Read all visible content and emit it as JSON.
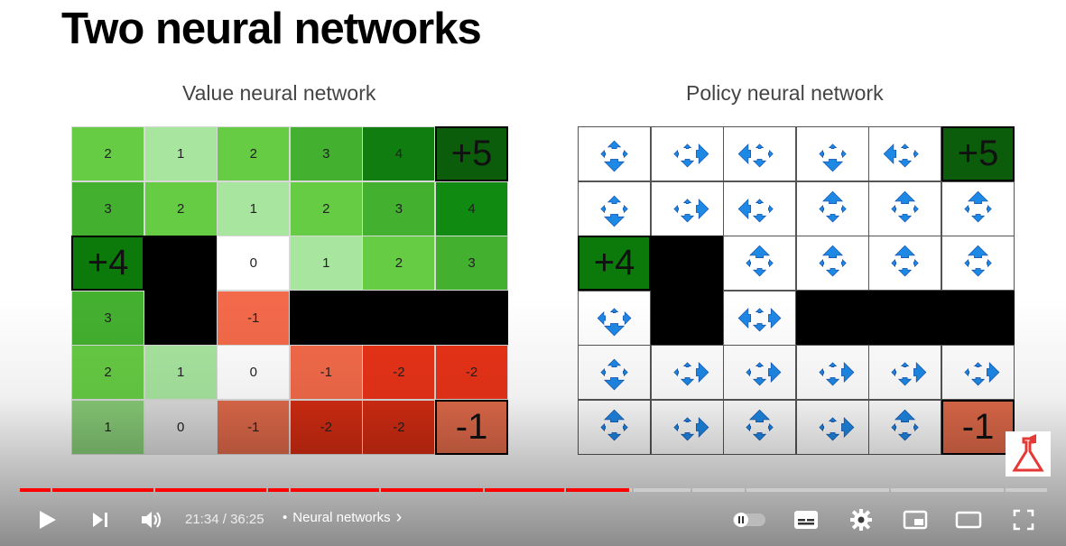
{
  "slide": {
    "title": "Two neural networks",
    "value_label": "Value neural network",
    "policy_label": "Policy neural network"
  },
  "value_grid": {
    "rows": [
      [
        "2",
        "1",
        "2",
        "3",
        "4",
        "+5"
      ],
      [
        "3",
        "2",
        "1",
        "2",
        "3",
        "4"
      ],
      [
        "+4",
        "",
        "0",
        "1",
        "2",
        "3"
      ],
      [
        "3",
        "",
        "-1",
        "",
        "",
        ""
      ],
      [
        "2",
        "1",
        "0",
        "-1",
        "-2",
        "-2"
      ],
      [
        "1",
        "0",
        "-1",
        "-2",
        "-2",
        "-1"
      ]
    ],
    "colors": [
      [
        "#66cc44",
        "#a8e6a0",
        "#66cc44",
        "#44b030",
        "#107d10",
        "#0b5c0b"
      ],
      [
        "#44b030",
        "#66cc44",
        "#a8e6a0",
        "#66cc44",
        "#44b030",
        "#108a10"
      ],
      [
        "#0b7a0b",
        "#000000",
        "#ffffff",
        "#a8e6a0",
        "#66cc44",
        "#44b030"
      ],
      [
        "#44b030",
        "#000000",
        "#f36a4a",
        "#000000",
        "#000000",
        "#000000"
      ],
      [
        "#66cc44",
        "#a8e6a0",
        "#ffffff",
        "#f36a4a",
        "#e83318",
        "#e83318"
      ],
      [
        "#88cc77",
        "#dddddd",
        "#e06a4a",
        "#d42c12",
        "#d42c12",
        "#e06a4a"
      ]
    ],
    "big_cells": [
      "0-5",
      "2-0",
      "5-5"
    ]
  },
  "policy_grid": {
    "rows": [
      [
        "",
        "",
        "",
        "",
        "",
        "+5"
      ],
      [
        "",
        "",
        "",
        "",
        "",
        ""
      ],
      [
        "+4",
        "",
        "",
        "",
        "",
        ""
      ],
      [
        "",
        "",
        "",
        "",
        "",
        ""
      ],
      [
        "",
        "",
        "",
        "",
        "",
        ""
      ],
      [
        "",
        "",
        "",
        "",
        "",
        "-1"
      ]
    ],
    "special": {
      "0-5": "#0b5c0b",
      "2-0": "#0b7a0b",
      "5-5": "#e06a4a"
    },
    "walls": [
      "2-1",
      "3-1",
      "3-3",
      "3-4",
      "3-5"
    ],
    "arrow_sets": [
      [
        [
          4,
          1,
          1,
          6
        ],
        [
          1,
          6,
          1,
          4
        ],
        [
          1,
          1,
          6,
          4
        ],
        [
          1,
          1,
          1,
          6
        ],
        [
          1,
          1,
          6,
          4
        ],
        [
          0,
          0,
          0,
          0
        ]
      ],
      [
        [
          4,
          1,
          1,
          6
        ],
        [
          1,
          6,
          1,
          4
        ],
        [
          1,
          1,
          6,
          4
        ],
        [
          6,
          1,
          1,
          4
        ],
        [
          6,
          1,
          1,
          4
        ],
        [
          6,
          1,
          1,
          4
        ]
      ],
      [
        [
          0,
          0,
          0,
          0
        ],
        [
          0,
          0,
          0,
          0
        ],
        [
          6,
          1,
          1,
          4
        ],
        [
          6,
          1,
          1,
          4
        ],
        [
          6,
          1,
          1,
          4
        ],
        [
          6,
          1,
          1,
          4
        ]
      ],
      [
        [
          1,
          4,
          4,
          6
        ],
        [
          0,
          0,
          0,
          0
        ],
        [
          1,
          6,
          6,
          4
        ],
        [
          0,
          0,
          0,
          0
        ],
        [
          0,
          0,
          0,
          0
        ],
        [
          0,
          0,
          0,
          0
        ]
      ],
      [
        [
          4,
          1,
          1,
          6
        ],
        [
          1,
          6,
          1,
          4
        ],
        [
          1,
          6,
          1,
          4
        ],
        [
          1,
          6,
          1,
          4
        ],
        [
          1,
          6,
          1,
          4
        ],
        [
          1,
          6,
          1,
          4
        ]
      ],
      [
        [
          6,
          1,
          1,
          4
        ],
        [
          1,
          6,
          1,
          4
        ],
        [
          6,
          1,
          1,
          4
        ],
        [
          1,
          6,
          1,
          4
        ],
        [
          6,
          1,
          1,
          4
        ],
        [
          0,
          0,
          0,
          0
        ]
      ]
    ],
    "arrow_color": "#1e88e5"
  },
  "player": {
    "time_current": "21:34",
    "time_total": "36:25",
    "time_sep": " / ",
    "dot": "•",
    "chapter": "Neural networks",
    "chapter_arrow": "›",
    "progress_played": 0.592,
    "accent": "#ff0000"
  }
}
